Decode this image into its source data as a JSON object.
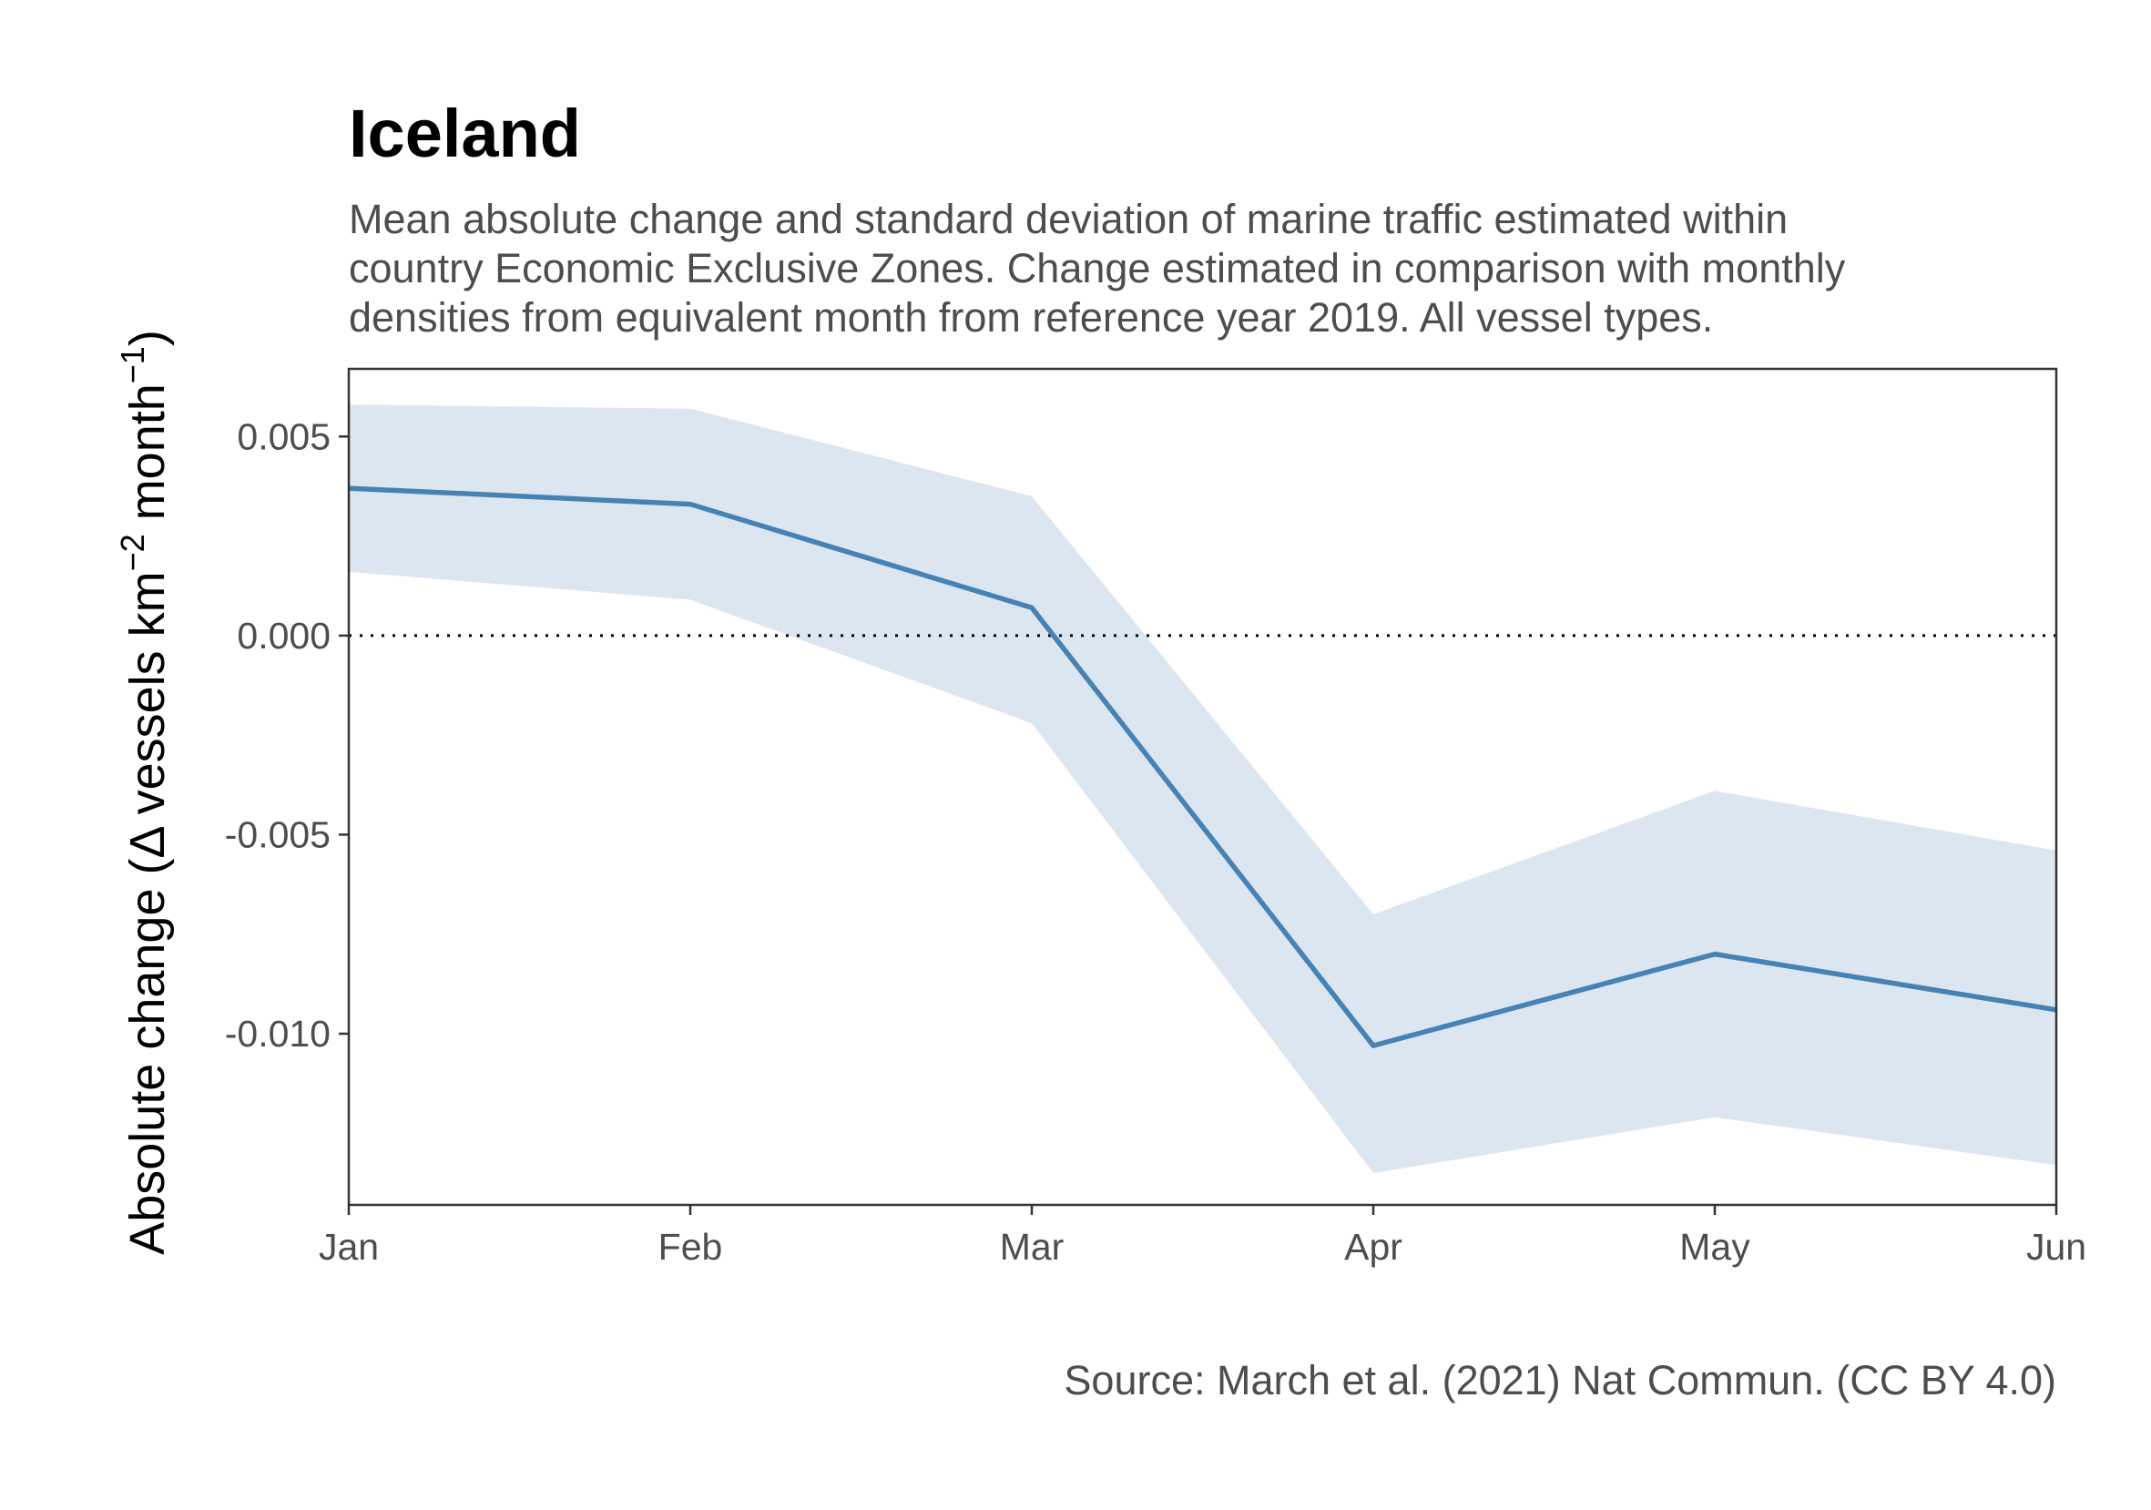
{
  "chart_data": {
    "type": "line",
    "title": "Iceland",
    "subtitle": [
      "Mean absolute change and standard deviation of marine traffic estimated within",
      "country Economic Exclusive Zones. Change estimated in comparison with monthly",
      "densities from equivalent month from reference year 2019. All vessel types."
    ],
    "ylabel": {
      "before": "Absolute change (",
      "delta": "Δ",
      "text1": " vessels km",
      "sup1": "−2",
      "text2": " month",
      "sup2": "−1",
      "after": ")"
    },
    "xlabel": "",
    "categories": [
      "Jan",
      "Feb",
      "Mar",
      "Apr",
      "May",
      "Jun"
    ],
    "series": [
      {
        "mean": [
          0.0037,
          0.0033,
          0.0007,
          -0.0103,
          -0.008,
          -0.0094
        ],
        "lower": [
          0.0016,
          0.0009,
          -0.0022,
          -0.0135,
          -0.0121,
          -0.0133
        ],
        "upper": [
          0.0058,
          0.0057,
          0.0035,
          -0.007,
          -0.0039,
          -0.0054
        ]
      }
    ],
    "yticks": [
      0.005,
      0.0,
      -0.005,
      -0.01
    ],
    "ytick_labels": [
      "0.005",
      "0.000",
      "-0.005",
      "-0.010"
    ],
    "ylim": [
      -0.0143,
      0.0067
    ],
    "reference_line": 0,
    "grid": false,
    "colors": {
      "line": "#4682b4",
      "ribbon": "#dce6f0",
      "axis": "#333333"
    },
    "caption": "Source: March et al. (2021) Nat Commun. (CC BY 4.0)"
  }
}
